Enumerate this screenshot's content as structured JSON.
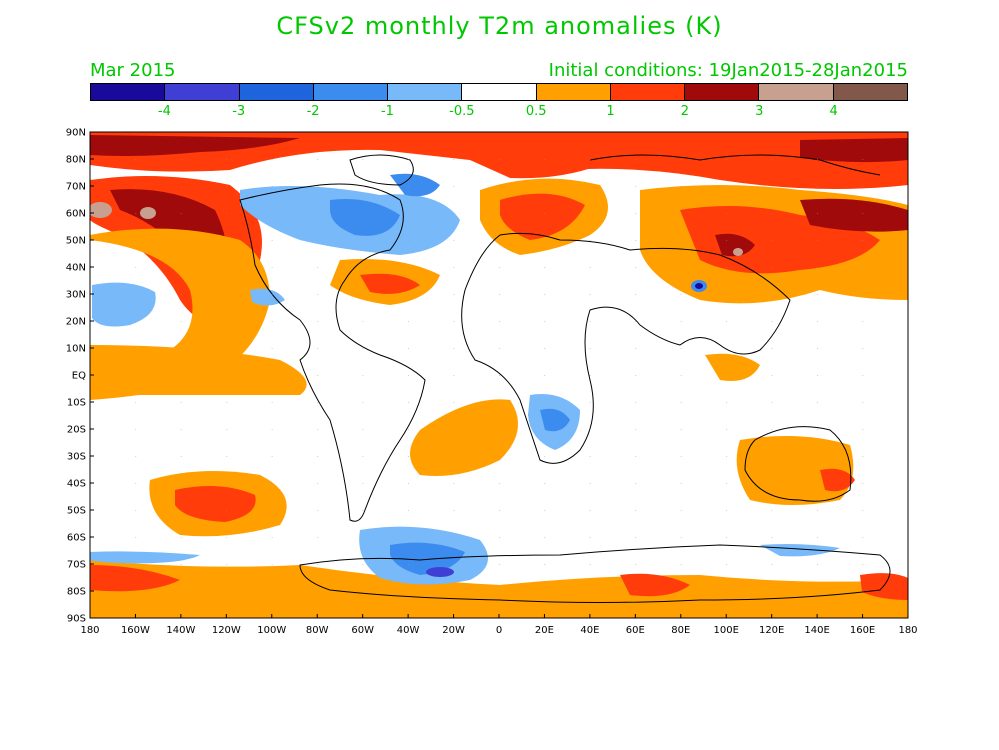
{
  "title": "CFSv2 monthly T2m anomalies (K)",
  "month_label": "Mar 2015",
  "init_label": "Initial conditions: 19Jan2015-28Jan2015",
  "colorbar": {
    "colors": [
      "#1a0a9c",
      "#3f3fd6",
      "#1e64dc",
      "#3c8cf0",
      "#78b9fa",
      "#ffffff",
      "#ffa000",
      "#ff3c0a",
      "#a00a0a",
      "#c8a090",
      "#82584a"
    ],
    "labels": [
      "-4",
      "-3",
      "-2",
      "-1",
      "-0.5",
      "0.5",
      "1",
      "2",
      "3",
      "4"
    ]
  },
  "axes": {
    "lat_labels": [
      "90N",
      "80N",
      "70N",
      "60N",
      "50N",
      "40N",
      "30N",
      "20N",
      "10N",
      "EQ",
      "10S",
      "20S",
      "30S",
      "40S",
      "50S",
      "60S",
      "70S",
      "80S",
      "90S"
    ],
    "lon_labels": [
      "180",
      "160W",
      "140W",
      "120W",
      "100W",
      "80W",
      "60W",
      "40W",
      "20W",
      "0",
      "20E",
      "40E",
      "60E",
      "80E",
      "100E",
      "120E",
      "140E",
      "160E",
      "180"
    ]
  },
  "colors": {
    "text": "#00c800",
    "ocean": "#ffffff",
    "coast": "#000000"
  }
}
